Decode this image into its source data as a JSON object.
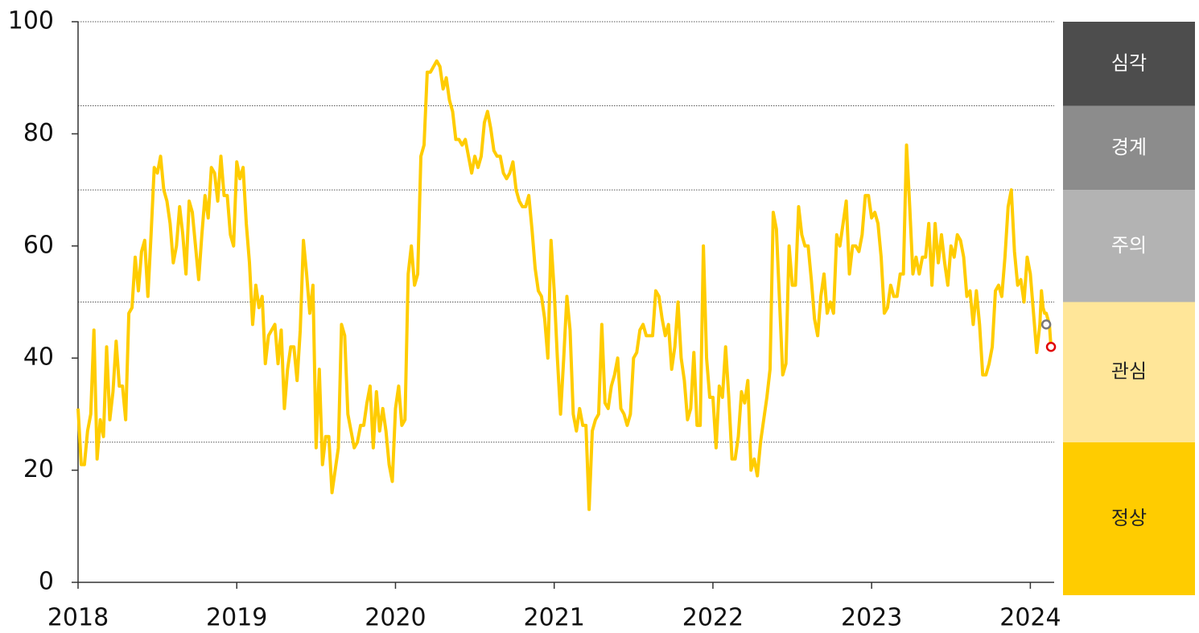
{
  "chart_data": {
    "type": "line",
    "x": [
      2018.0,
      2018.02,
      2018.04,
      2018.06,
      2018.08,
      2018.1,
      2018.12,
      2018.14,
      2018.16,
      2018.18,
      2018.2,
      2018.22,
      2018.24,
      2018.26,
      2018.28,
      2018.3,
      2018.32,
      2018.34,
      2018.36,
      2018.38,
      2018.4,
      2018.42,
      2018.44,
      2018.46,
      2018.48,
      2018.5,
      2018.52,
      2018.54,
      2018.56,
      2018.58,
      2018.6,
      2018.62,
      2018.64,
      2018.66,
      2018.68,
      2018.7,
      2018.72,
      2018.74,
      2018.76,
      2018.78,
      2018.8,
      2018.82,
      2018.84,
      2018.86,
      2018.88,
      2018.9,
      2018.92,
      2018.94,
      2018.96,
      2018.98,
      2019.0,
      2019.02,
      2019.04,
      2019.06,
      2019.08,
      2019.1,
      2019.12,
      2019.14,
      2019.16,
      2019.18,
      2019.2,
      2019.22,
      2019.24,
      2019.26,
      2019.28,
      2019.3,
      2019.32,
      2019.34,
      2019.36,
      2019.38,
      2019.4,
      2019.42,
      2019.44,
      2019.46,
      2019.48,
      2019.5,
      2019.52,
      2019.54,
      2019.56,
      2019.58,
      2019.6,
      2019.62,
      2019.64,
      2019.66,
      2019.68,
      2019.7,
      2019.72,
      2019.74,
      2019.76,
      2019.78,
      2019.8,
      2019.82,
      2019.84,
      2019.86,
      2019.88,
      2019.9,
      2019.92,
      2019.94,
      2019.96,
      2019.98,
      2020.0,
      2020.02,
      2020.04,
      2020.06,
      2020.08,
      2020.1,
      2020.12,
      2020.14,
      2020.16,
      2020.18,
      2020.2,
      2020.22,
      2020.24,
      2020.26,
      2020.28,
      2020.3,
      2020.32,
      2020.34,
      2020.36,
      2020.38,
      2020.4,
      2020.42,
      2020.44,
      2020.46,
      2020.48,
      2020.5,
      2020.52,
      2020.54,
      2020.56,
      2020.58,
      2020.6,
      2020.62,
      2020.64,
      2020.66,
      2020.68,
      2020.7,
      2020.72,
      2020.74,
      2020.76,
      2020.78,
      2020.8,
      2020.82,
      2020.84,
      2020.86,
      2020.88,
      2020.9,
      2020.92,
      2020.94,
      2020.96,
      2020.98,
      2021.0,
      2021.02,
      2021.04,
      2021.06,
      2021.08,
      2021.1,
      2021.12,
      2021.14,
      2021.16,
      2021.18,
      2021.2,
      2021.22,
      2021.24,
      2021.26,
      2021.28,
      2021.3,
      2021.32,
      2021.34,
      2021.36,
      2021.38,
      2021.4,
      2021.42,
      2021.44,
      2021.46,
      2021.48,
      2021.5,
      2021.52,
      2021.54,
      2021.56,
      2021.58,
      2021.6,
      2021.62,
      2021.64,
      2021.66,
      2021.68,
      2021.7,
      2021.72,
      2021.74,
      2021.76,
      2021.78,
      2021.8,
      2021.82,
      2021.84,
      2021.86,
      2021.88,
      2021.9,
      2021.92,
      2021.94,
      2021.96,
      2021.98,
      2022.0,
      2022.02,
      2022.04,
      2022.06,
      2022.08,
      2022.1,
      2022.12,
      2022.14,
      2022.16,
      2022.18,
      2022.2,
      2022.22,
      2022.24,
      2022.26,
      2022.28,
      2022.3,
      2022.32,
      2022.34,
      2022.36,
      2022.38,
      2022.4,
      2022.42,
      2022.44,
      2022.46,
      2022.48,
      2022.5,
      2022.52,
      2022.54,
      2022.56,
      2022.58,
      2022.6,
      2022.62,
      2022.64,
      2022.66,
      2022.68,
      2022.7,
      2022.72,
      2022.74,
      2022.76,
      2022.78,
      2022.8,
      2022.82,
      2022.84,
      2022.86,
      2022.88,
      2022.9,
      2022.92,
      2022.94,
      2022.96,
      2022.98,
      2023.0,
      2023.02,
      2023.04,
      2023.06,
      2023.08,
      2023.1,
      2023.12,
      2023.14,
      2023.16,
      2023.18,
      2023.2,
      2023.22,
      2023.24,
      2023.26,
      2023.28,
      2023.3,
      2023.32,
      2023.34,
      2023.36,
      2023.38,
      2023.4,
      2023.42,
      2023.44,
      2023.46,
      2023.48,
      2023.5,
      2023.52,
      2023.54,
      2023.56,
      2023.58,
      2023.6,
      2023.62,
      2023.64,
      2023.66,
      2023.68,
      2023.7,
      2023.72,
      2023.74,
      2023.76,
      2023.78,
      2023.8,
      2023.82,
      2023.84,
      2023.86,
      2023.88,
      2023.9,
      2023.92,
      2023.94,
      2023.96,
      2023.98,
      2024.0,
      2024.02,
      2024.04,
      2024.06,
      2024.07,
      2024.08,
      2024.09,
      2024.1,
      2024.12,
      2024.13
    ],
    "series": [
      {
        "color": "#ffcc00",
        "values": [
          31,
          21,
          21,
          27,
          30,
          45,
          22,
          29,
          26,
          42,
          29,
          34,
          43,
          35,
          35,
          29,
          48,
          49,
          58,
          52,
          59,
          61,
          51,
          62,
          74,
          73,
          76,
          70,
          68,
          64,
          57,
          60,
          67,
          62,
          55,
          68,
          66,
          60,
          54,
          62,
          69,
          65,
          74,
          73,
          68,
          76,
          69,
          69,
          62,
          60,
          75,
          72,
          74,
          64,
          57,
          46,
          53,
          49,
          51,
          39,
          44,
          45,
          46,
          39,
          45,
          31,
          38,
          42,
          42,
          36,
          45,
          61,
          55,
          48,
          53,
          24,
          38,
          21,
          26,
          26,
          16,
          20,
          24,
          46,
          44,
          30,
          27,
          24,
          25,
          28,
          28,
          32,
          35,
          24,
          34,
          27,
          31,
          27,
          21,
          18,
          31,
          35,
          28,
          29,
          55,
          60,
          53,
          55,
          76,
          78,
          91,
          91,
          92,
          93,
          92,
          88,
          90,
          86,
          84,
          79,
          79,
          78,
          79,
          76,
          73,
          76,
          74,
          76,
          82,
          84,
          81,
          77,
          76,
          76,
          73,
          72,
          73,
          75,
          70,
          68,
          67,
          67,
          69,
          63,
          56,
          52,
          51,
          47,
          40,
          61,
          52,
          40,
          30,
          40,
          51,
          45,
          30,
          27,
          31,
          28,
          28,
          13,
          27,
          29,
          30,
          46,
          32,
          31,
          35,
          37,
          40,
          31,
          30,
          28,
          30,
          40,
          41,
          45,
          46,
          44,
          44,
          44,
          52,
          51,
          47,
          44,
          46,
          38,
          42,
          50,
          40,
          36,
          29,
          31,
          41,
          28,
          28,
          60,
          40,
          33,
          33,
          24,
          35,
          33,
          42,
          33,
          22,
          22,
          26,
          34,
          32,
          36,
          20,
          22,
          19,
          25,
          29,
          33,
          38,
          66,
          63,
          50,
          37,
          39,
          60,
          53,
          53,
          67,
          62,
          60,
          60,
          54,
          47,
          44,
          51,
          55,
          48,
          50,
          48,
          62,
          60,
          64,
          68,
          55,
          60,
          60,
          59,
          62,
          69,
          69,
          65,
          66,
          64,
          58,
          48,
          49,
          53,
          51,
          51,
          55,
          55,
          78,
          67,
          55,
          58,
          55,
          58,
          58,
          64,
          53,
          64,
          57,
          62,
          57,
          53,
          60,
          58,
          62,
          61,
          58,
          51,
          52,
          46,
          52,
          46,
          37,
          37,
          39,
          42,
          52,
          53,
          51,
          58,
          67,
          70,
          59,
          53,
          54,
          50,
          58,
          55,
          48,
          41,
          46,
          52,
          49,
          48,
          48,
          46,
          42
        ]
      }
    ],
    "markers": [
      {
        "x": 2024.1,
        "y": 46,
        "color": "#777777"
      },
      {
        "x": 2024.13,
        "y": 42,
        "color": "#e00000"
      }
    ],
    "xlim": [
      2018,
      2024.15
    ],
    "xticks": [
      2018,
      2019,
      2020,
      2021,
      2022,
      2023,
      2024
    ],
    "ylim": [
      0,
      100
    ],
    "yticks": [
      0,
      20,
      40,
      60,
      80,
      100
    ],
    "thresholds": [
      25,
      50,
      70,
      85
    ],
    "bands": [
      {
        "label": "정상",
        "color": "#ffcc00"
      },
      {
        "label": "관심",
        "color": "#ffe699"
      },
      {
        "label": "주의",
        "color": "#b3b3b3"
      },
      {
        "label": "경계",
        "color": "#8c8c8c"
      },
      {
        "label": "심각",
        "color": "#4d4d4d"
      }
    ]
  }
}
